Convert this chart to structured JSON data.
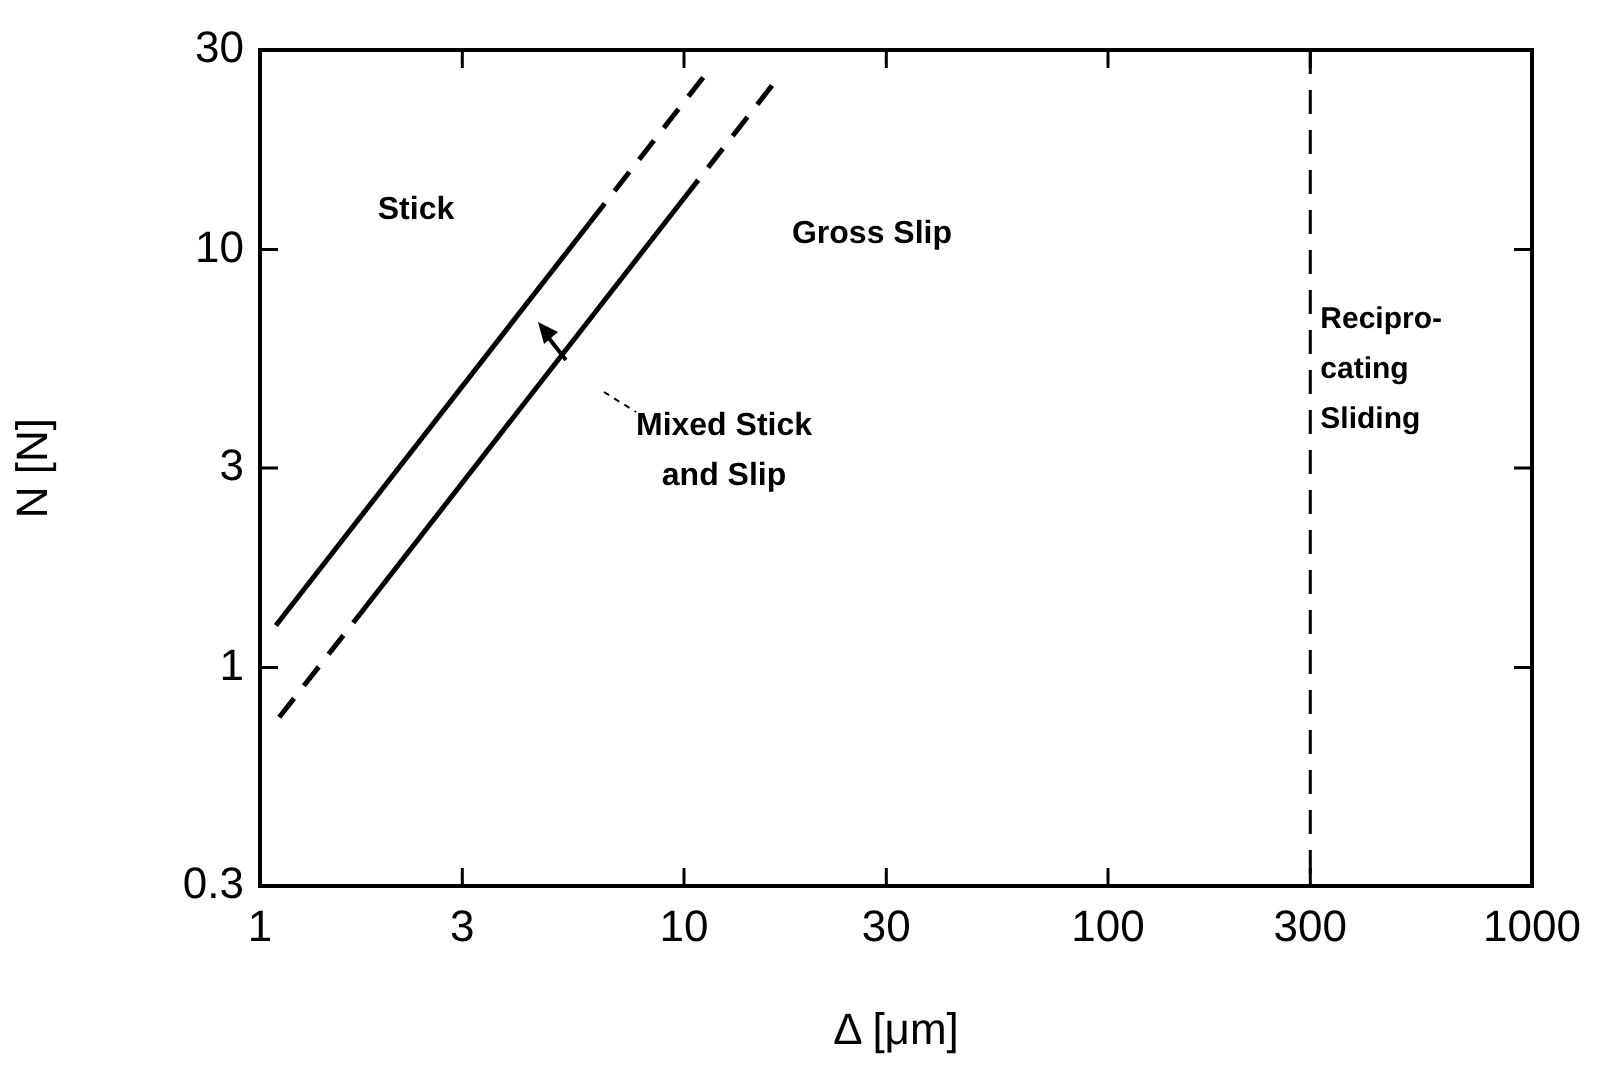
{
  "chart_data": {
    "type": "line",
    "xlabel": "Δ [μm]",
    "ylabel": "N [N]",
    "log": "xy",
    "grid": false,
    "legend": false,
    "marker": "none",
    "xlim": [
      1,
      1000
    ],
    "xticks": [
      1,
      3,
      10,
      30,
      100,
      300,
      1000
    ],
    "ylim": [
      0.3,
      30
    ],
    "yticks": [
      0.3,
      1,
      3,
      10,
      30
    ],
    "series": [
      {
        "color": "#000000",
        "line_style": "solid",
        "x": [
          1.09,
          6
        ],
        "values": [
          1.26,
          11.6
        ]
      },
      {
        "color": "#000000",
        "line_style": "dashed",
        "x": [
          6,
          11.3
        ],
        "values": [
          11.6,
          26.4
        ]
      },
      {
        "color": "#000000",
        "line_style": "dashed",
        "x": [
          1.11,
          1.72
        ],
        "values": [
          0.76,
          1.34
        ]
      },
      {
        "color": "#000000",
        "line_style": "solid",
        "x": [
          1.72,
          9.97
        ],
        "values": [
          1.34,
          13.2
        ]
      },
      {
        "color": "#000000",
        "line_style": "dashed",
        "x": [
          9.97,
          16.5
        ],
        "values": [
          13.2,
          25.4
        ]
      }
    ],
    "ref_lines": [
      {
        "axis": "x",
        "value": 300,
        "label": "Recipro-\ncating\nSliding",
        "line_style": "dashed",
        "color": "#000000"
      }
    ],
    "annotations": [
      "Stick",
      "Gross Slip",
      "Mixed Stick\nand Slip"
    ]
  }
}
